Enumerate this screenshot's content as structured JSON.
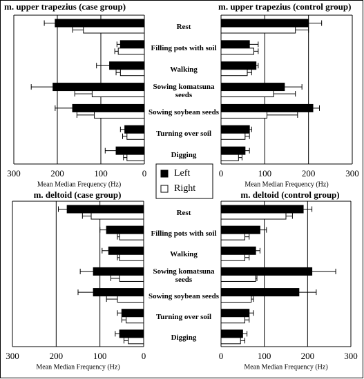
{
  "chart_data": [
    {
      "type": "bar",
      "orientation": "horizontal",
      "title": "m. upper trapezius (case group)",
      "xlabel": "Mean Median Frequency (Hz)",
      "categories": [
        "Rest",
        "Filling pots with soil",
        "Walking",
        "Sowing komatsuna seeds",
        "Sowing soybean seeds",
        "Turning over soil",
        "Digging"
      ],
      "xlim": [
        0,
        300
      ],
      "xticks": [
        0,
        100,
        200,
        300
      ],
      "x_reversed": true,
      "series": [
        {
          "name": "Left",
          "color": "#000000",
          "values": [
            205,
            55,
            80,
            210,
            165,
            45,
            65
          ],
          "errors": [
            25,
            8,
            30,
            50,
            40,
            10,
            25
          ]
        },
        {
          "name": "Right",
          "color": "#ffffff",
          "values": [
            140,
            60,
            55,
            120,
            115,
            40,
            40
          ],
          "errors": [
            25,
            8,
            10,
            40,
            40,
            10,
            8
          ]
        }
      ]
    },
    {
      "type": "bar",
      "orientation": "horizontal",
      "title": "m. upper trapezius (control group)",
      "xlabel": "Mean Median Frequency (Hz)",
      "xlim": [
        0,
        300
      ],
      "xticks": [
        0,
        100,
        200,
        300
      ],
      "x_reversed": false,
      "series": [
        {
          "color": "#000000",
          "values": [
            200,
            65,
            80,
            145,
            210,
            65,
            55
          ],
          "errors": [
            30,
            20,
            5,
            40,
            15,
            5,
            10
          ]
        },
        {
          "color": "#ffffff",
          "values": [
            170,
            75,
            60,
            120,
            105,
            55,
            40
          ],
          "errors": [
            30,
            10,
            10,
            50,
            70,
            10,
            8
          ]
        }
      ]
    },
    {
      "type": "bar",
      "orientation": "horizontal",
      "title": "m. deltoid (case group)",
      "xlabel": "Mean Median Frequency (Hz)",
      "categories": [
        "Rest",
        "Filling pots with soil",
        "Walking",
        "Sowing komatsuna seeds",
        "Sowing soybean seeds",
        "Turning over soil",
        "Digging"
      ],
      "xlim": [
        0,
        300
      ],
      "xticks": [
        0,
        100,
        200,
        300
      ],
      "x_reversed": true,
      "series": [
        {
          "color": "#000000",
          "values": [
            175,
            85,
            80,
            115,
            115,
            50,
            55
          ],
          "errors": [
            20,
            15,
            15,
            30,
            35,
            10,
            10
          ]
        },
        {
          "color": "#ffffff",
          "values": [
            120,
            55,
            55,
            55,
            60,
            40,
            35
          ],
          "errors": [
            20,
            5,
            5,
            20,
            25,
            10,
            10
          ]
        }
      ]
    },
    {
      "type": "bar",
      "orientation": "horizontal",
      "title": "m. deltoid (control group)",
      "xlabel": "Mean Median Frequency (Hz)",
      "xlim": [
        0,
        300
      ],
      "xticks": [
        0,
        100,
        200,
        300
      ],
      "x_reversed": false,
      "series": [
        {
          "color": "#000000",
          "values": [
            190,
            90,
            80,
            210,
            180,
            65,
            50
          ],
          "errors": [
            20,
            15,
            10,
            55,
            40,
            10,
            10
          ]
        },
        {
          "color": "#ffffff",
          "values": [
            150,
            55,
            55,
            80,
            70,
            55,
            45
          ],
          "errors": [
            15,
            10,
            10,
            3,
            5,
            10,
            10
          ]
        }
      ]
    }
  ]
}
